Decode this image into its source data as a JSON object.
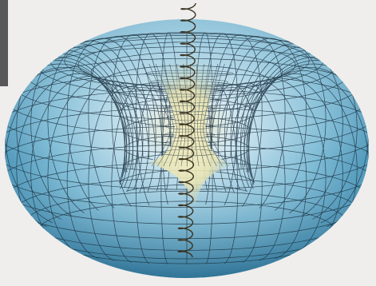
{
  "figure": {
    "subject": "torus-with-central-helix",
    "colors": {
      "background": "#efeeec",
      "torus_fill_light": "#cfe6f0",
      "torus_fill_mid": "#7fbcd6",
      "torus_fill_dark": "#2f7fa6",
      "mesh_line": "#1c3140",
      "hole_glow": "#f4eab0",
      "helix_line": "#3a3320",
      "corner_strip": "#58585a"
    },
    "mesh": {
      "meridians": 48,
      "parallels": 30
    },
    "helix": {
      "turns": 22
    }
  }
}
